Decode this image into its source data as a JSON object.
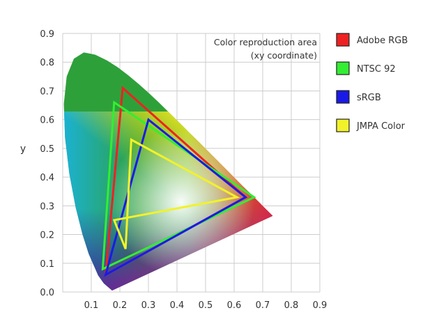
{
  "chart_data": {
    "type": "line",
    "title": "",
    "annotation": [
      "Color reproduction area",
      "(xy coordinate)"
    ],
    "xlabel": "",
    "ylabel": "y",
    "xlim": [
      0,
      0.9
    ],
    "ylim": [
      0,
      0.9
    ],
    "x_ticks": [
      "0.1",
      "0.2",
      "0.3",
      "0.4",
      "0.5",
      "0.6",
      "0.7",
      "0.8",
      "0.9"
    ],
    "y_ticks": [
      "0.0",
      "0.1",
      "0.2",
      "0.3",
      "0.4",
      "0.5",
      "0.6",
      "0.7",
      "0.8",
      "0.9"
    ],
    "grid": true,
    "legend_position": "right",
    "series": [
      {
        "name": "Adobe RGB",
        "color": "#ee2222",
        "points": [
          [
            0.21,
            0.71
          ],
          [
            0.64,
            0.33
          ],
          [
            0.15,
            0.06
          ]
        ]
      },
      {
        "name": "NTSC 92",
        "color": "#33ee33",
        "points": [
          [
            0.18,
            0.66
          ],
          [
            0.67,
            0.33
          ],
          [
            0.14,
            0.08
          ]
        ]
      },
      {
        "name": "sRGB",
        "color": "#1a1ae6",
        "points": [
          [
            0.3,
            0.6
          ],
          [
            0.64,
            0.33
          ],
          [
            0.15,
            0.06
          ]
        ]
      },
      {
        "name": "JMPA Color",
        "color": "#f2f22a",
        "points": [
          [
            0.24,
            0.53
          ],
          [
            0.61,
            0.33
          ],
          [
            0.18,
            0.25
          ],
          [
            0.22,
            0.15
          ]
        ]
      }
    ],
    "spectral_locus": [
      [
        0.173,
        0.005
      ],
      [
        0.165,
        0.012
      ],
      [
        0.144,
        0.03
      ],
      [
        0.124,
        0.058
      ],
      [
        0.091,
        0.133
      ],
      [
        0.069,
        0.201
      ],
      [
        0.045,
        0.295
      ],
      [
        0.023,
        0.413
      ],
      [
        0.008,
        0.538
      ],
      [
        0.004,
        0.655
      ],
      [
        0.014,
        0.75
      ],
      [
        0.039,
        0.812
      ],
      [
        0.074,
        0.834
      ],
      [
        0.114,
        0.826
      ],
      [
        0.155,
        0.806
      ],
      [
        0.193,
        0.782
      ],
      [
        0.23,
        0.754
      ],
      [
        0.266,
        0.724
      ],
      [
        0.302,
        0.692
      ],
      [
        0.337,
        0.659
      ],
      [
        0.373,
        0.624
      ],
      [
        0.409,
        0.589
      ],
      [
        0.444,
        0.554
      ],
      [
        0.479,
        0.52
      ],
      [
        0.512,
        0.487
      ],
      [
        0.544,
        0.455
      ],
      [
        0.575,
        0.424
      ],
      [
        0.603,
        0.396
      ],
      [
        0.627,
        0.372
      ],
      [
        0.648,
        0.351
      ],
      [
        0.666,
        0.334
      ],
      [
        0.68,
        0.32
      ],
      [
        0.691,
        0.309
      ],
      [
        0.702,
        0.298
      ],
      [
        0.735,
        0.265
      ]
    ]
  }
}
